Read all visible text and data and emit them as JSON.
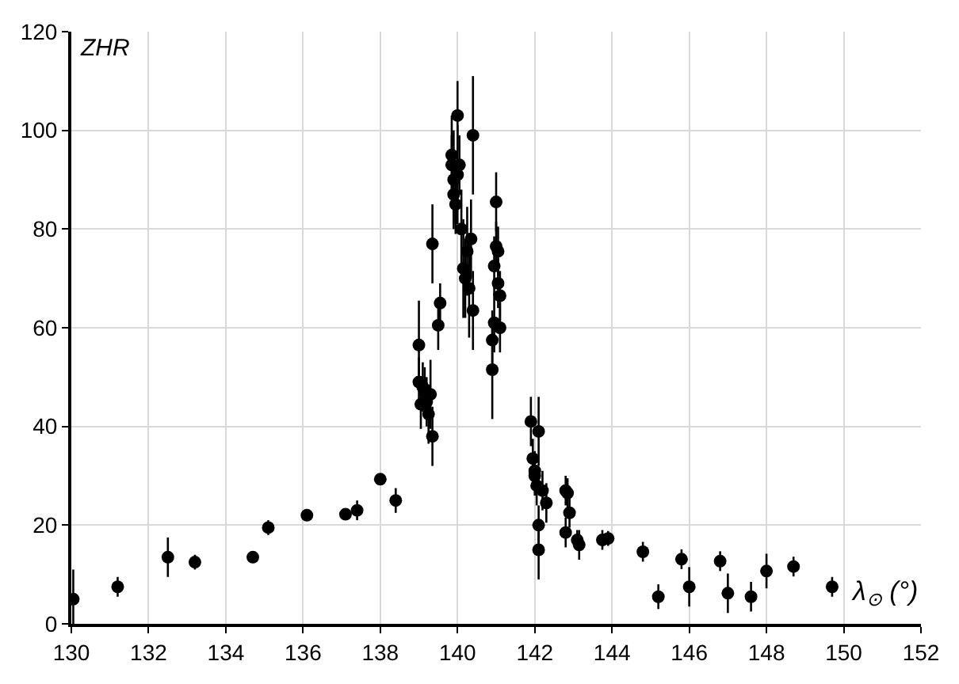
{
  "chart_data": {
    "type": "scatter",
    "xlabel": "λ$_{⊙}$ (°)",
    "ylabel": "ZHR",
    "x": [
      130.05,
      131.2,
      132.5,
      133.2,
      134.7,
      135.1,
      136.1,
      137.1,
      137.4,
      138.0,
      138.4,
      139.0,
      139.0,
      139.05,
      139.1,
      139.15,
      139.2,
      139.25,
      139.3,
      139.35,
      139.35,
      139.5,
      139.55,
      139.85,
      139.85,
      139.9,
      139.9,
      139.95,
      140.0,
      140.0,
      140.05,
      140.1,
      140.15,
      140.2,
      140.25,
      140.3,
      140.35,
      140.4,
      140.4,
      140.9,
      140.9,
      140.95,
      140.95,
      141.0,
      141.0,
      141.05,
      141.05,
      141.1,
      141.1,
      141.9,
      141.95,
      142.0,
      142.0,
      142.05,
      142.1,
      142.1,
      142.1,
      142.2,
      142.3,
      142.8,
      142.85,
      142.9,
      142.8,
      143.1,
      143.15,
      143.75,
      143.9,
      144.8,
      145.2,
      145.8,
      146.0,
      146.8,
      147.0,
      147.6,
      148.0,
      148.7,
      149.7
    ],
    "series": [
      {
        "color": "#000000",
        "values": [
          5,
          7.5,
          13.5,
          12.5,
          13.5,
          19.5,
          22,
          22.2,
          23,
          29.3,
          25,
          56.5,
          49,
          44.5,
          48,
          47,
          45,
          42.5,
          46.5,
          38,
          77,
          60.5,
          65,
          95,
          93,
          90,
          87,
          85,
          103,
          91,
          93,
          80,
          72,
          70,
          75.5,
          68,
          78,
          99,
          63.5,
          57.5,
          51.5,
          61,
          72.5,
          85.5,
          76.5,
          75.5,
          69,
          66.5,
          60,
          41,
          33.5,
          31,
          30,
          28,
          39,
          20,
          15,
          27,
          24.5,
          27,
          26.5,
          22.5,
          18.5,
          17,
          16,
          17,
          17.3,
          14.6,
          5.5,
          13.1,
          7.5,
          12.7,
          6.2,
          5.5,
          10.7,
          11.6,
          7.5
        ],
        "errors": [
          6,
          2,
          4,
          1.5,
          1,
          1.5,
          1,
          1,
          2,
          1,
          2.5,
          9,
          5,
          5,
          5,
          5,
          5,
          6,
          7,
          6,
          8,
          5,
          4,
          8,
          6,
          10,
          6,
          6,
          7,
          10,
          6,
          8,
          10,
          8,
          9,
          10,
          8,
          12,
          8,
          6,
          10,
          6,
          6,
          6,
          5,
          5,
          5,
          5,
          5,
          5,
          4,
          4,
          4,
          4,
          7,
          4,
          6,
          4,
          4,
          3,
          3,
          3,
          3,
          2,
          3,
          2,
          1.5,
          2,
          2.5,
          2,
          4,
          2,
          4,
          3,
          3.5,
          2,
          2
        ]
      }
    ],
    "xlim": [
      130,
      152
    ],
    "xticks": [
      130,
      132,
      134,
      136,
      138,
      140,
      142,
      144,
      146,
      148,
      150,
      152
    ],
    "ylim": [
      0,
      120
    ],
    "yticks": [
      0,
      20,
      40,
      60,
      80,
      100,
      120
    ],
    "grid": true,
    "marker": "circle"
  }
}
